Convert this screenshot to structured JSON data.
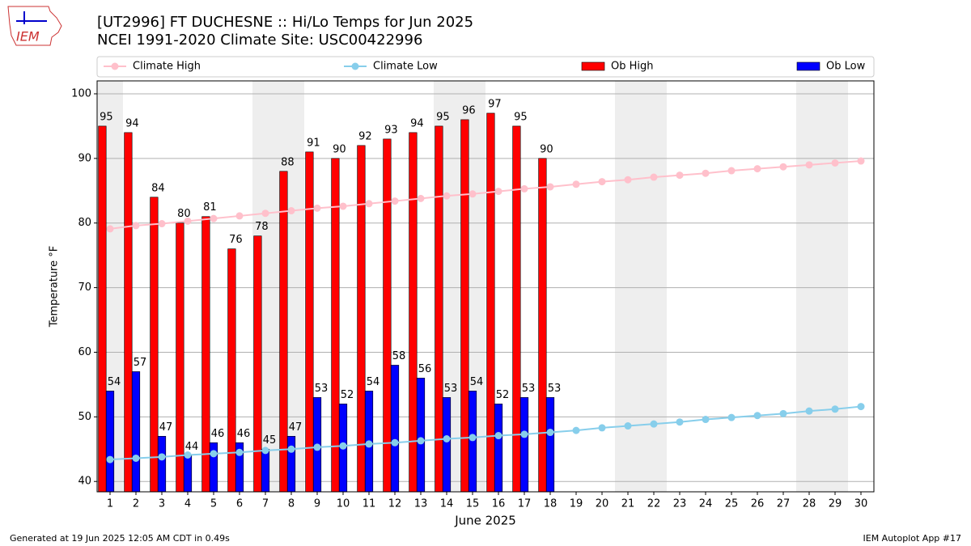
{
  "logo": "IEM",
  "header": {
    "title": "[UT2996] FT DUCHESNE :: Hi/Lo Temps for Jun 2025",
    "subtitle": "NCEI 1991-2020 Climate Site: USC00422996"
  },
  "chart_data": {
    "type": "bar",
    "x": [
      1,
      2,
      3,
      4,
      5,
      6,
      7,
      8,
      9,
      10,
      11,
      12,
      13,
      14,
      15,
      16,
      17,
      18,
      19,
      20,
      21,
      22,
      23,
      24,
      25,
      26,
      27,
      28,
      29,
      30
    ],
    "xlim": [
      0.5,
      30.5
    ],
    "xticks": [
      1,
      2,
      3,
      4,
      5,
      6,
      7,
      8,
      9,
      10,
      11,
      12,
      13,
      14,
      15,
      16,
      17,
      18,
      19,
      20,
      21,
      22,
      23,
      24,
      25,
      26,
      27,
      28,
      29,
      30
    ],
    "xlabel": "June 2025",
    "ylabel": "Temperature °F",
    "ylim": [
      38.4,
      102
    ],
    "yticks": [
      40,
      50,
      60,
      70,
      80,
      90,
      100
    ],
    "grid": true,
    "weekend_days": [
      1,
      7,
      8,
      14,
      15,
      21,
      22,
      28,
      29
    ],
    "series": [
      {
        "name": "Climate High",
        "type": "line",
        "color": "pink",
        "values": [
          79.1,
          79.6,
          79.9,
          80.3,
          80.7,
          81.1,
          81.5,
          81.9,
          82.3,
          82.6,
          83.0,
          83.4,
          83.8,
          84.2,
          84.5,
          84.9,
          85.3,
          85.6,
          86.0,
          86.4,
          86.7,
          87.1,
          87.4,
          87.7,
          88.1,
          88.4,
          88.7,
          89.0,
          89.3,
          89.6
        ]
      },
      {
        "name": "Climate Low",
        "type": "line",
        "color": "skyblue",
        "values": [
          43.4,
          43.6,
          43.8,
          44.1,
          44.3,
          44.5,
          44.8,
          45.0,
          45.3,
          45.5,
          45.8,
          46.0,
          46.3,
          46.6,
          46.8,
          47.1,
          47.3,
          47.6,
          47.9,
          48.3,
          48.6,
          48.9,
          49.2,
          49.6,
          49.9,
          50.2,
          50.5,
          50.9,
          51.2,
          51.6
        ]
      },
      {
        "name": "Ob High",
        "type": "bar",
        "color": "red",
        "values": [
          95,
          94,
          84,
          80,
          81,
          76,
          78,
          88,
          91,
          90,
          92,
          93,
          94,
          95,
          96,
          97,
          95,
          90,
          null,
          null,
          null,
          null,
          null,
          null,
          null,
          null,
          null,
          null,
          null,
          null
        ]
      },
      {
        "name": "Ob Low",
        "type": "bar",
        "color": "blue",
        "values": [
          54,
          57,
          47,
          44,
          46,
          46,
          45,
          47,
          53,
          52,
          54,
          58,
          56,
          53,
          54,
          52,
          53,
          53,
          null,
          null,
          null,
          null,
          null,
          null,
          null,
          null,
          null,
          null,
          null,
          null
        ]
      }
    ]
  },
  "footer": {
    "left": "Generated at 19 Jun 2025 12:05 AM CDT in 0.49s",
    "right": "IEM Autoplot App #17"
  }
}
